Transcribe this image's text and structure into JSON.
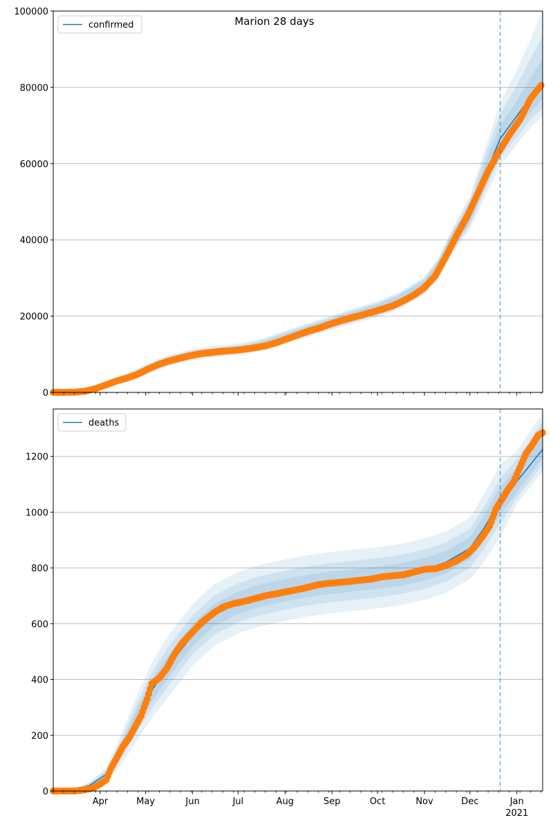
{
  "title": "Marion 28 days",
  "colors": {
    "fit": "#1f77b4",
    "observed": "#ff7f0e",
    "band": "#1f77b4",
    "grid": "#b0b0b0"
  },
  "x_axis": {
    "start": "2020-03-01",
    "end": "2021-01-18",
    "forecast_date": "2020-12-21",
    "month_ticks": [
      {
        "date": "2020-04-01",
        "label": "Apr"
      },
      {
        "date": "2020-05-01",
        "label": "May"
      },
      {
        "date": "2020-06-01",
        "label": "Jun"
      },
      {
        "date": "2020-07-01",
        "label": "Jul"
      },
      {
        "date": "2020-08-01",
        "label": "Aug"
      },
      {
        "date": "2020-09-01",
        "label": "Sep"
      },
      {
        "date": "2020-10-01",
        "label": "Oct"
      },
      {
        "date": "2020-11-01",
        "label": "Nov"
      },
      {
        "date": "2020-12-01",
        "label": "Dec"
      },
      {
        "date": "2021-01-01",
        "label": "Jan",
        "sublabel": "2021"
      }
    ]
  },
  "chart_data": [
    {
      "type": "line",
      "legend": "confirmed",
      "legend_position": "top-left",
      "grid": "y",
      "ylim": [
        0,
        100000
      ],
      "yticks": [
        0,
        20000,
        40000,
        60000,
        80000,
        100000
      ],
      "fit": [
        [
          "2020-03-01",
          0
        ],
        [
          "2020-03-20",
          300
        ],
        [
          "2020-04-01",
          1600
        ],
        [
          "2020-04-15",
          3400
        ],
        [
          "2020-05-01",
          6000
        ],
        [
          "2020-05-15",
          8200
        ],
        [
          "2020-06-01",
          9900
        ],
        [
          "2020-06-15",
          10700
        ],
        [
          "2020-07-01",
          11300
        ],
        [
          "2020-07-15",
          12300
        ],
        [
          "2020-08-01",
          14500
        ],
        [
          "2020-08-15",
          16200
        ],
        [
          "2020-09-01",
          18300
        ],
        [
          "2020-09-15",
          20000
        ],
        [
          "2020-10-01",
          21800
        ],
        [
          "2020-10-15",
          24000
        ],
        [
          "2020-11-01",
          28000
        ],
        [
          "2020-11-10",
          32500
        ],
        [
          "2020-11-20",
          40000
        ],
        [
          "2020-12-01",
          47000
        ],
        [
          "2020-12-10",
          56000
        ],
        [
          "2020-12-21",
          66500
        ],
        [
          "2021-01-01",
          72500
        ],
        [
          "2021-01-10",
          77500
        ],
        [
          "2021-01-18",
          81500
        ]
      ],
      "bands": [
        {
          "lo_offset": [
            0,
            50,
            200,
            400,
            600,
            700,
            700,
            700,
            700,
            800,
            900,
            1000,
            1100,
            1200,
            1300,
            1400,
            1500,
            1800,
            2200,
            2500,
            3000,
            3500,
            3500,
            4000,
            4500
          ],
          "hi_offset": [
            0,
            50,
            200,
            400,
            600,
            700,
            700,
            700,
            700,
            800,
            900,
            1000,
            1100,
            1200,
            1300,
            1400,
            1500,
            1800,
            2200,
            2500,
            3000,
            3500,
            4000,
            5000,
            6000
          ]
        },
        {
          "lo_offset": [
            0,
            100,
            350,
            700,
            1000,
            1100,
            1100,
            1100,
            1100,
            1200,
            1300,
            1400,
            1500,
            1600,
            1700,
            1800,
            1900,
            2200,
            2800,
            3200,
            4000,
            5000,
            5500,
            6000,
            7000
          ],
          "hi_offset": [
            0,
            100,
            350,
            700,
            1000,
            1100,
            1100,
            1100,
            1100,
            1200,
            1300,
            1400,
            1500,
            1600,
            1700,
            1800,
            1900,
            2200,
            2800,
            3500,
            5000,
            6500,
            8000,
            10000,
            12000
          ]
        },
        {
          "lo_offset": [
            0,
            150,
            500,
            1000,
            1400,
            1500,
            1500,
            1500,
            1500,
            1600,
            1700,
            1800,
            1900,
            2000,
            2100,
            2200,
            2300,
            2700,
            3400,
            4000,
            5500,
            7000,
            7500,
            8000,
            9000
          ],
          "hi_offset": [
            0,
            150,
            500,
            1000,
            1400,
            1500,
            1500,
            1500,
            1500,
            1600,
            1700,
            1800,
            1900,
            2000,
            2100,
            2200,
            2300,
            2700,
            3400,
            4500,
            6500,
            9500,
            12000,
            15000,
            18500
          ]
        }
      ],
      "observed": [
        [
          "2020-03-01",
          0
        ],
        [
          "2020-03-08",
          0
        ],
        [
          "2020-03-15",
          50
        ],
        [
          "2020-03-22",
          300
        ],
        [
          "2020-03-29",
          1000
        ],
        [
          "2020-04-05",
          2000
        ],
        [
          "2020-04-12",
          3000
        ],
        [
          "2020-04-19",
          3800
        ],
        [
          "2020-04-26",
          4800
        ],
        [
          "2020-05-03",
          6200
        ],
        [
          "2020-05-10",
          7400
        ],
        [
          "2020-05-17",
          8300
        ],
        [
          "2020-05-24",
          9000
        ],
        [
          "2020-05-31",
          9700
        ],
        [
          "2020-06-07",
          10200
        ],
        [
          "2020-06-14",
          10500
        ],
        [
          "2020-06-21",
          10800
        ],
        [
          "2020-06-28",
          11000
        ],
        [
          "2020-07-05",
          11300
        ],
        [
          "2020-07-12",
          11700
        ],
        [
          "2020-07-19",
          12200
        ],
        [
          "2020-07-26",
          13000
        ],
        [
          "2020-08-02",
          14000
        ],
        [
          "2020-08-09",
          15000
        ],
        [
          "2020-08-16",
          16000
        ],
        [
          "2020-08-23",
          16800
        ],
        [
          "2020-08-30",
          17800
        ],
        [
          "2020-09-06",
          18700
        ],
        [
          "2020-09-13",
          19500
        ],
        [
          "2020-09-20",
          20200
        ],
        [
          "2020-09-27",
          21000
        ],
        [
          "2020-10-04",
          21800
        ],
        [
          "2020-10-11",
          22700
        ],
        [
          "2020-10-18",
          24000
        ],
        [
          "2020-10-25",
          25500
        ],
        [
          "2020-11-01",
          27500
        ],
        [
          "2020-11-08",
          30500
        ],
        [
          "2020-11-15",
          35500
        ],
        [
          "2020-11-22",
          41000
        ],
        [
          "2020-11-29",
          46000
        ],
        [
          "2020-12-06",
          52000
        ],
        [
          "2020-12-13",
          58000
        ],
        [
          "2020-12-20",
          63000
        ],
        [
          "2020-12-27",
          67500
        ],
        [
          "2021-01-03",
          71500
        ],
        [
          "2021-01-10",
          77000
        ],
        [
          "2021-01-17",
          80500
        ]
      ]
    },
    {
      "type": "line",
      "legend": "deaths",
      "legend_position": "top-left",
      "grid": "y",
      "ylim": [
        0,
        1370
      ],
      "yticks": [
        0,
        200,
        400,
        600,
        800,
        1000,
        1200
      ],
      "fit": [
        [
          "2020-03-01",
          0
        ],
        [
          "2020-03-15",
          5
        ],
        [
          "2020-03-25",
          20
        ],
        [
          "2020-04-05",
          60
        ],
        [
          "2020-04-15",
          150
        ],
        [
          "2020-04-25",
          260
        ],
        [
          "2020-05-05",
          360
        ],
        [
          "2020-05-15",
          440
        ],
        [
          "2020-06-01",
          560
        ],
        [
          "2020-06-15",
          630
        ],
        [
          "2020-07-01",
          675
        ],
        [
          "2020-07-15",
          700
        ],
        [
          "2020-08-01",
          720
        ],
        [
          "2020-08-15",
          735
        ],
        [
          "2020-09-01",
          748
        ],
        [
          "2020-09-15",
          755
        ],
        [
          "2020-10-01",
          765
        ],
        [
          "2020-10-15",
          775
        ],
        [
          "2020-11-01",
          795
        ],
        [
          "2020-11-15",
          820
        ],
        [
          "2020-12-01",
          870
        ],
        [
          "2020-12-10",
          940
        ],
        [
          "2020-12-21",
          1040
        ],
        [
          "2021-01-01",
          1110
        ],
        [
          "2021-01-18",
          1225
        ]
      ],
      "bands": [
        {
          "lo_offset": [
            0,
            2,
            5,
            10,
            20,
            30,
            40,
            40,
            40,
            40,
            40,
            40,
            40,
            40,
            40,
            40,
            40,
            40,
            40,
            40,
            40,
            45,
            50,
            40,
            30
          ],
          "hi_offset": [
            0,
            2,
            5,
            10,
            20,
            30,
            40,
            40,
            40,
            40,
            40,
            40,
            40,
            40,
            40,
            40,
            40,
            40,
            40,
            40,
            40,
            45,
            50,
            50,
            60
          ]
        },
        {
          "lo_offset": [
            0,
            3,
            8,
            15,
            35,
            50,
            65,
            70,
            70,
            70,
            70,
            70,
            70,
            70,
            70,
            70,
            70,
            70,
            70,
            70,
            70,
            75,
            80,
            60,
            55
          ],
          "hi_offset": [
            0,
            3,
            8,
            15,
            35,
            50,
            65,
            70,
            70,
            70,
            70,
            70,
            70,
            70,
            70,
            70,
            70,
            70,
            70,
            70,
            70,
            75,
            80,
            80,
            100
          ]
        },
        {
          "lo_offset": [
            0,
            5,
            12,
            25,
            55,
            80,
            100,
            110,
            110,
            110,
            110,
            110,
            110,
            110,
            110,
            110,
            110,
            110,
            110,
            110,
            110,
            120,
            130,
            80,
            80
          ],
          "hi_offset": [
            0,
            5,
            12,
            25,
            55,
            80,
            100,
            110,
            110,
            110,
            110,
            110,
            110,
            110,
            110,
            110,
            110,
            110,
            110,
            110,
            110,
            120,
            130,
            110,
            130
          ]
        }
      ],
      "observed": [
        [
          "2020-03-01",
          0
        ],
        [
          "2020-03-08",
          0
        ],
        [
          "2020-03-15",
          0
        ],
        [
          "2020-03-20",
          3
        ],
        [
          "2020-03-27",
          10
        ],
        [
          "2020-04-01",
          25
        ],
        [
          "2020-04-05",
          40
        ],
        [
          "2020-04-08",
          80
        ],
        [
          "2020-04-12",
          120
        ],
        [
          "2020-04-16",
          160
        ],
        [
          "2020-04-20",
          190
        ],
        [
          "2020-04-24",
          230
        ],
        [
          "2020-04-28",
          270
        ],
        [
          "2020-05-02",
          330
        ],
        [
          "2020-05-05",
          385
        ],
        [
          "2020-05-10",
          405
        ],
        [
          "2020-05-15",
          440
        ],
        [
          "2020-05-20",
          490
        ],
        [
          "2020-05-25",
          530
        ],
        [
          "2020-06-01",
          570
        ],
        [
          "2020-06-07",
          605
        ],
        [
          "2020-06-14",
          635
        ],
        [
          "2020-06-21",
          660
        ],
        [
          "2020-06-28",
          672
        ],
        [
          "2020-07-05",
          680
        ],
        [
          "2020-07-12",
          690
        ],
        [
          "2020-07-19",
          700
        ],
        [
          "2020-07-26",
          707
        ],
        [
          "2020-08-02",
          715
        ],
        [
          "2020-08-09",
          722
        ],
        [
          "2020-08-16",
          730
        ],
        [
          "2020-08-23",
          740
        ],
        [
          "2020-08-30",
          745
        ],
        [
          "2020-09-06",
          748
        ],
        [
          "2020-09-13",
          752
        ],
        [
          "2020-09-20",
          756
        ],
        [
          "2020-09-27",
          760
        ],
        [
          "2020-10-04",
          768
        ],
        [
          "2020-10-11",
          772
        ],
        [
          "2020-10-18",
          775
        ],
        [
          "2020-10-25",
          785
        ],
        [
          "2020-11-01",
          795
        ],
        [
          "2020-11-08",
          797
        ],
        [
          "2020-11-15",
          808
        ],
        [
          "2020-11-22",
          825
        ],
        [
          "2020-11-29",
          848
        ],
        [
          "2020-12-04",
          875
        ],
        [
          "2020-12-09",
          910
        ],
        [
          "2020-12-14",
          950
        ],
        [
          "2020-12-18",
          1010
        ],
        [
          "2020-12-22",
          1045
        ],
        [
          "2020-12-26",
          1080
        ],
        [
          "2020-12-30",
          1110
        ],
        [
          "2021-01-03",
          1160
        ],
        [
          "2021-01-07",
          1210
        ],
        [
          "2021-01-11",
          1240
        ],
        [
          "2021-01-15",
          1275
        ],
        [
          "2021-01-18",
          1285
        ]
      ]
    }
  ]
}
